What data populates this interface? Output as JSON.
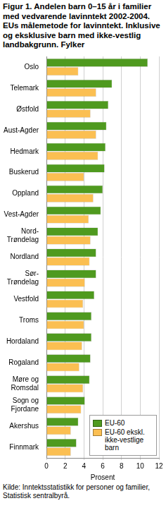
{
  "chart_data": {
    "type": "bar",
    "orientation": "horizontal",
    "title": "Figur 1. Andelen barn 0–15 år i familier med vedvarende lavinntekt 2002-2004. EUs målemetode for lavinntekt. Inklusive og eksklusive barn med ikke-vestlig landbakgrunn. Fylker",
    "x_label": "Prosent",
    "source": "Kilde: Inntektsstatistikk for personer og familier, Statistisk sentralbyrå.",
    "categories": [
      "Oslo",
      "Telemark",
      "Østfold",
      "Aust-Agder",
      "Hedmark",
      "Buskerud",
      "Oppland",
      "Vest-Agder",
      [
        "Nord-",
        "Trøndelag"
      ],
      "Nordland",
      [
        "Sør-",
        "Trøndelag"
      ],
      "Vestfold",
      "Troms",
      "Hordaland",
      "Rogaland",
      [
        "Møre og",
        "Romsdal"
      ],
      [
        "Sogn og",
        "Fjordane"
      ],
      "Akershus",
      "Finnmark"
    ],
    "series": [
      {
        "name": "EU-60",
        "color": "#4f9a1f",
        "values": [
          10.8,
          7.0,
          6.6,
          6.4,
          6.3,
          6.2,
          6.0,
          5.8,
          5.5,
          5.3,
          5.3,
          5.1,
          4.8,
          4.8,
          4.7,
          4.6,
          4.1,
          3.4,
          3.2
        ]
      },
      {
        "name": "EU-60 ekskl. ikke-vestlige barn",
        "color": "#fbbf52",
        "values": [
          3.4,
          5.3,
          4.7,
          5.3,
          5.5,
          4.0,
          5.0,
          4.5,
          4.7,
          4.6,
          4.1,
          3.9,
          4.0,
          3.8,
          3.5,
          3.9,
          3.7,
          2.6,
          2.6
        ]
      }
    ],
    "xlim": [
      0,
      12
    ],
    "xticks": [
      0,
      2,
      4,
      6,
      8,
      10,
      12
    ],
    "grid": true,
    "legend": "lower right"
  }
}
